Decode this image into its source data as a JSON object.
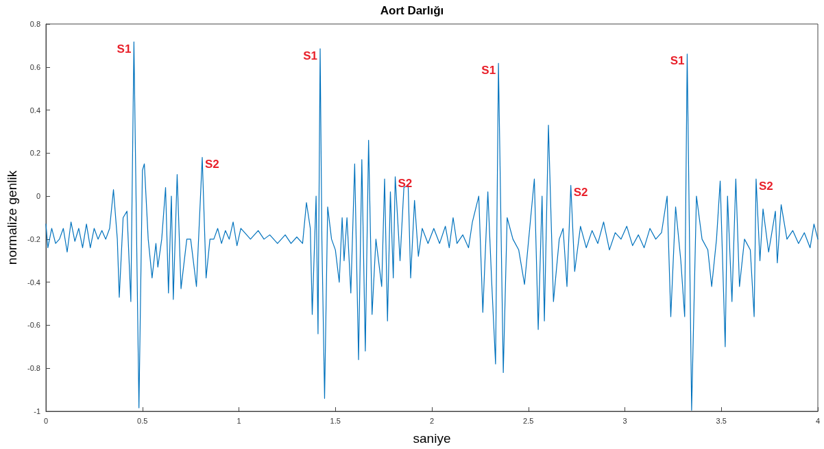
{
  "chart_data": {
    "type": "line",
    "title": "Aort Darlığı",
    "xlabel": "saniye",
    "ylabel": "normalize genlik",
    "color": "#0072bd",
    "marker": "none",
    "line_style": "solid",
    "grid": false,
    "x": [
      0,
      0.01,
      0.03,
      0.05,
      0.07,
      0.09,
      0.11,
      0.13,
      0.15,
      0.17,
      0.19,
      0.21,
      0.23,
      0.25,
      0.27,
      0.29,
      0.31,
      0.33,
      0.35,
      0.37,
      0.38,
      0.4,
      0.42,
      0.44,
      0.456,
      0.47,
      0.482,
      0.5,
      0.51,
      0.53,
      0.55,
      0.57,
      0.58,
      0.6,
      0.62,
      0.635,
      0.65,
      0.66,
      0.68,
      0.7,
      0.73,
      0.75,
      0.78,
      0.81,
      0.83,
      0.85,
      0.87,
      0.89,
      0.91,
      0.93,
      0.95,
      0.97,
      0.99,
      1.01,
      1.03,
      1.06,
      1.1,
      1.13,
      1.16,
      1.2,
      1.24,
      1.27,
      1.3,
      1.33,
      1.35,
      1.37,
      1.38,
      1.4,
      1.41,
      1.421,
      1.43,
      1.444,
      1.46,
      1.48,
      1.5,
      1.52,
      1.535,
      1.545,
      1.56,
      1.58,
      1.6,
      1.62,
      1.637,
      1.655,
      1.672,
      1.69,
      1.71,
      1.74,
      1.755,
      1.77,
      1.785,
      1.8,
      1.81,
      1.835,
      1.855,
      1.877,
      1.89,
      1.91,
      1.93,
      1.95,
      1.98,
      2.01,
      2.04,
      2.07,
      2.09,
      2.11,
      2.13,
      2.16,
      2.19,
      2.21,
      2.243,
      2.264,
      2.29,
      2.31,
      2.33,
      2.345,
      2.37,
      2.39,
      2.42,
      2.45,
      2.48,
      2.51,
      2.531,
      2.551,
      2.571,
      2.583,
      2.604,
      2.63,
      2.66,
      2.68,
      2.7,
      2.72,
      2.74,
      2.77,
      2.8,
      2.83,
      2.86,
      2.89,
      2.92,
      2.95,
      2.98,
      3.01,
      3.04,
      3.07,
      3.1,
      3.13,
      3.16,
      3.19,
      3.219,
      3.238,
      3.263,
      3.29,
      3.31,
      3.323,
      3.346,
      3.371,
      3.4,
      3.43,
      3.45,
      3.475,
      3.494,
      3.52,
      3.532,
      3.555,
      3.575,
      3.594,
      3.62,
      3.65,
      3.67,
      3.68,
      3.7,
      3.716,
      3.745,
      3.78,
      3.79,
      3.81,
      3.84,
      3.87,
      3.9,
      3.93,
      3.96,
      3.98,
      4
    ],
    "values": [
      -0.13,
      -0.24,
      -0.15,
      -0.22,
      -0.2,
      -0.15,
      -0.26,
      -0.12,
      -0.21,
      -0.15,
      -0.24,
      -0.13,
      -0.24,
      -0.15,
      -0.2,
      -0.16,
      -0.2,
      -0.15,
      0.03,
      -0.2,
      -0.47,
      -0.1,
      -0.07,
      -0.49,
      0.717,
      -0.2,
      -0.984,
      0.12,
      0.15,
      -0.2,
      -0.38,
      -0.22,
      -0.33,
      -0.2,
      0.04,
      -0.45,
      0,
      -0.48,
      0.1,
      -0.43,
      -0.2,
      -0.2,
      -0.42,
      0.18,
      -0.38,
      -0.2,
      -0.2,
      -0.15,
      -0.22,
      -0.16,
      -0.2,
      -0.12,
      -0.23,
      -0.15,
      -0.17,
      -0.2,
      -0.16,
      -0.2,
      -0.18,
      -0.22,
      -0.18,
      -0.22,
      -0.19,
      -0.22,
      -0.03,
      -0.15,
      -0.55,
      0,
      -0.64,
      0.685,
      -0.2,
      -0.94,
      -0.05,
      -0.2,
      -0.25,
      -0.4,
      -0.1,
      -0.3,
      -0.1,
      -0.45,
      0.15,
      -0.76,
      0.17,
      -0.72,
      0.26,
      -0.55,
      -0.2,
      -0.42,
      0.08,
      -0.58,
      0.02,
      -0.38,
      0.09,
      -0.3,
      0.04,
      0.05,
      -0.38,
      -0.02,
      -0.28,
      -0.15,
      -0.22,
      -0.15,
      -0.22,
      -0.14,
      -0.24,
      -0.1,
      -0.22,
      -0.18,
      -0.24,
      -0.12,
      0,
      -0.54,
      0.02,
      -0.4,
      -0.78,
      0.617,
      -0.82,
      -0.1,
      -0.2,
      -0.25,
      -0.41,
      -0.12,
      0.08,
      -0.62,
      0,
      -0.58,
      0.33,
      -0.49,
      -0.2,
      -0.15,
      -0.42,
      0.05,
      -0.35,
      -0.14,
      -0.24,
      -0.16,
      -0.22,
      -0.12,
      -0.25,
      -0.17,
      -0.2,
      -0.14,
      -0.23,
      -0.18,
      -0.24,
      -0.15,
      -0.2,
      -0.17,
      0,
      -0.56,
      -0.05,
      -0.3,
      -0.56,
      0.66,
      -0.995,
      0,
      -0.2,
      -0.25,
      -0.42,
      -0.2,
      0.07,
      -0.7,
      0,
      -0.49,
      0.08,
      -0.42,
      -0.2,
      -0.25,
      -0.56,
      0.08,
      -0.3,
      -0.06,
      -0.26,
      -0.07,
      -0.31,
      -0.04,
      -0.2,
      -0.16,
      -0.22,
      -0.17,
      -0.24,
      -0.13,
      -0.2
    ],
    "xlim": [
      0,
      4
    ],
    "xticks": [
      0,
      0.5,
      1,
      1.5,
      2,
      2.5,
      3,
      3.5,
      4
    ],
    "ylim": [
      -1,
      0.8
    ],
    "yticks": [
      -1,
      -0.8,
      -0.6,
      -0.4,
      -0.2,
      0,
      0.2,
      0.4,
      0.6,
      0.8
    ],
    "annotations": [
      {
        "text": "S1",
        "x": 0.456,
        "y": 0.717
      },
      {
        "text": "S2",
        "x": 0.81,
        "y": 0.18
      },
      {
        "text": "S1",
        "x": 1.421,
        "y": 0.685
      },
      {
        "text": "S2",
        "x": 1.81,
        "y": 0.09
      },
      {
        "text": "S1",
        "x": 2.345,
        "y": 0.617
      },
      {
        "text": "S2",
        "x": 2.72,
        "y": 0.05
      },
      {
        "text": "S1",
        "x": 3.323,
        "y": 0.66
      },
      {
        "text": "S2",
        "x": 3.68,
        "y": 0.08
      }
    ]
  }
}
